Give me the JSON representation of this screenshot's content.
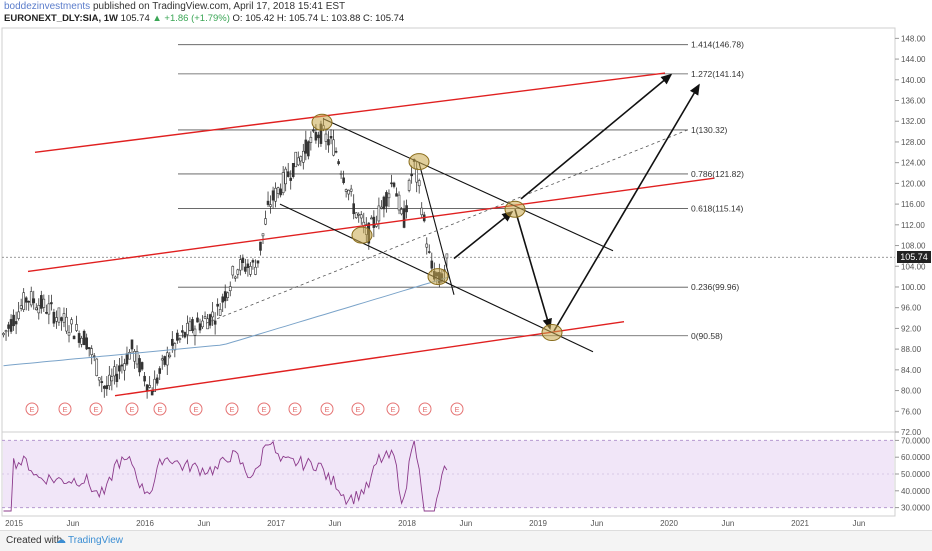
{
  "header": {
    "user": "boddezinvestments",
    "published": " published on TradingView.com, April 17, 2018 15:41 EST",
    "symbol": "EURONEXT_DLY:SIA, 1W",
    "last": "105.74",
    "change": "▲ +1.86 (+1.79%)",
    "ohlc": "O: 105.42 H: 105.74 L: 103.88 C: 105.74"
  },
  "footer": {
    "created": "Created with",
    "brand": "TradingView",
    "cloud_icon": "cloud-icon"
  },
  "chart_data": {
    "type": "candlestick",
    "price_axis": {
      "min": 72,
      "max": 150,
      "ticks": [
        "148.00",
        "144.00",
        "140.00",
        "136.00",
        "132.00",
        "128.00",
        "124.00",
        "120.00",
        "116.00",
        "112.00",
        "108.00",
        "104.00",
        "100.00",
        "96.00",
        "92.00",
        "88.00",
        "84.00",
        "80.00",
        "76.00",
        "72.00"
      ],
      "last_price": "105.74"
    },
    "rsi_axis": {
      "min": 25,
      "max": 75,
      "ticks": [
        "70.0000",
        "60.0000",
        "50.0000",
        "40.0000",
        "30.0000"
      ]
    },
    "time_axis": [
      "2015",
      "Jun",
      "2016",
      "Jun",
      "2017",
      "Jun",
      "2018",
      "Jun",
      "2019",
      "Jun",
      "2020",
      "Jun",
      "2021",
      "Jun"
    ],
    "fib_levels": [
      {
        "label": "1.414(146.78)",
        "value": 146.78
      },
      {
        "label": "1.272(141.14)",
        "value": 141.14
      },
      {
        "label": "1(130.32)",
        "value": 130.32
      },
      {
        "label": "0.786(121.82)",
        "value": 121.82
      },
      {
        "label": "0.618(115.14)",
        "value": 115.14
      },
      {
        "label": "0.236(99.96)",
        "value": 99.96
      },
      {
        "label": "0(90.58)",
        "value": 90.58
      }
    ],
    "earnings_marker": "E",
    "colors": {
      "channel": "#e02020",
      "candle_up": "#3a3a3a",
      "candle_down": "#3a3a3a",
      "ma": "#7aa3c9",
      "rsi": "#8b3a8b",
      "rsi_band": "#f1e6f8",
      "highlight": "#c8a84a"
    }
  }
}
